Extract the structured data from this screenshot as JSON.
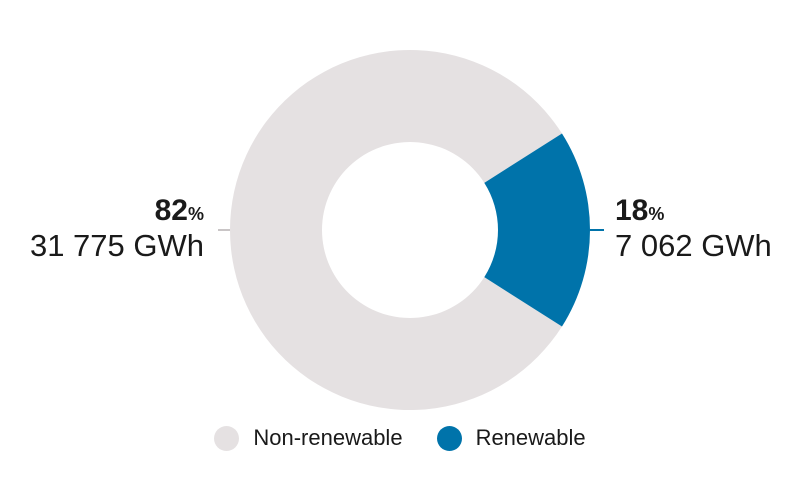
{
  "chart_data": {
    "type": "pie",
    "donut": true,
    "series": [
      {
        "name": "Non-renewable",
        "percent": 82,
        "value": 31775,
        "value_label": "31 775 GWh",
        "color": "#e5e1e2"
      },
      {
        "name": "Renewable",
        "percent": 18,
        "value": 7062,
        "value_label": "7 062 GWh",
        "color": "#0073aa"
      }
    ],
    "unit": "GWh",
    "percent_sign": "%",
    "legend": {
      "placement": "bottom-center",
      "entries": [
        "Non-renewable",
        "Renewable"
      ]
    }
  }
}
